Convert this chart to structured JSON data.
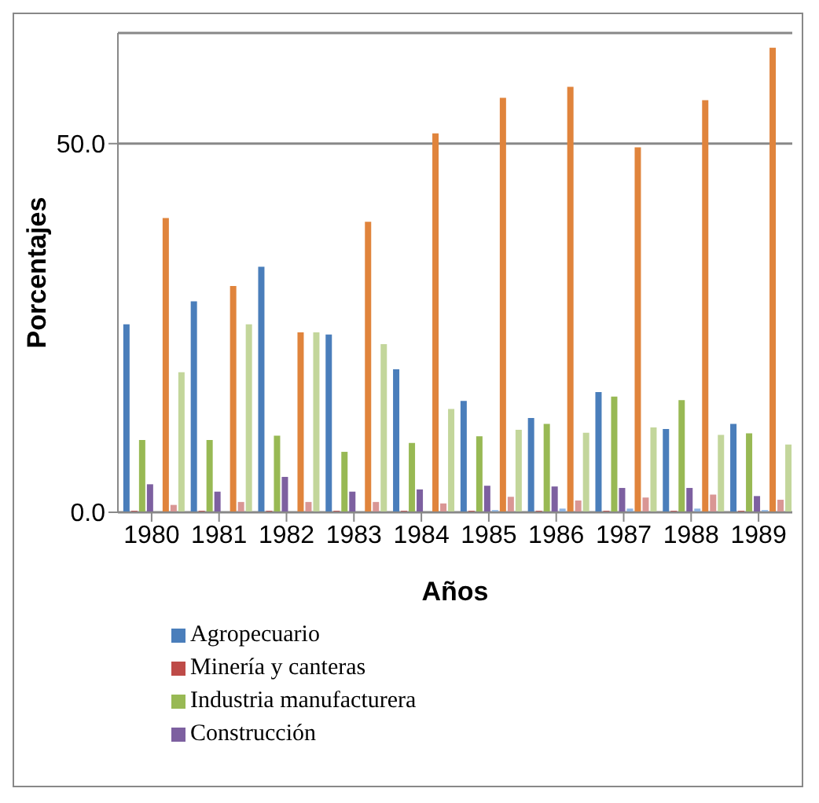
{
  "chart_data": {
    "type": "bar",
    "xlabel": "Años",
    "ylabel": "Porcentajes",
    "categories": [
      "1980",
      "1981",
      "1982",
      "1983",
      "1984",
      "1985",
      "1986",
      "1987",
      "1988",
      "1989"
    ],
    "series": [
      {
        "name": "Agropecuario",
        "color": "#4a7ebb",
        "values": [
          25.5,
          28.6,
          33.3,
          24.1,
          19.4,
          15.1,
          12.8,
          16.3,
          11.3,
          12.0
        ]
      },
      {
        "name": "Minería y canteras",
        "color": "#be4b48",
        "values": [
          0.2,
          0.2,
          0.2,
          0.2,
          0.2,
          0.2,
          0.2,
          0.2,
          0.2,
          0.2
        ]
      },
      {
        "name": "Industria manufacturera",
        "color": "#98b954",
        "values": [
          9.8,
          9.8,
          10.4,
          8.2,
          9.4,
          10.3,
          12.0,
          15.7,
          15.2,
          10.7
        ]
      },
      {
        "name": "Construcción",
        "color": "#7d60a0",
        "values": [
          3.8,
          2.8,
          4.8,
          2.8,
          3.1,
          3.6,
          3.5,
          3.3,
          3.3,
          2.2
        ]
      },
      {
        "color": "#8eb4e3",
        "values": [
          0.1,
          0.1,
          0.1,
          0.1,
          0.1,
          0.3,
          0.5,
          0.5,
          0.5,
          0.3
        ]
      },
      {
        "color": "#e0843c",
        "values": [
          39.9,
          30.7,
          24.4,
          39.4,
          51.4,
          56.2,
          57.7,
          49.5,
          55.9,
          63.0
        ]
      },
      {
        "color": "#d99694",
        "values": [
          1.0,
          1.4,
          1.4,
          1.4,
          1.2,
          2.1,
          1.6,
          2.0,
          2.4,
          1.7
        ]
      },
      {
        "color": "#c3d69b",
        "values": [
          19.0,
          25.5,
          24.4,
          22.8,
          14.0,
          11.2,
          10.8,
          11.5,
          10.5,
          9.2
        ]
      }
    ],
    "ylim": [
      0,
      65
    ],
    "yticks": [
      {
        "value": 0,
        "label": "0.0"
      },
      {
        "value": 50,
        "label": "50.0"
      }
    ],
    "grid": "y",
    "legend": "bottom"
  }
}
